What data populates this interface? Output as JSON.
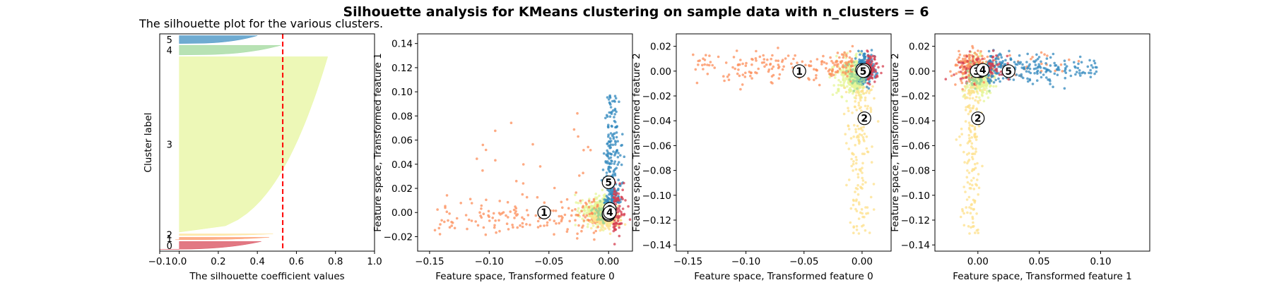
{
  "suptitle": "Silhouette analysis for KMeans clustering on sample data with n_clusters = 6",
  "colors": {
    "0": "#d53e4f",
    "1": "#fc8d59",
    "2": "#fee08b",
    "3": "#e6f598",
    "4": "#99d594",
    "5": "#3288bd",
    "avg_line": "#ff0000"
  },
  "chart_data": [
    {
      "type": "silhouette",
      "title": "The silhouette plot for the various clusters.",
      "xlabel": "The silhouette coefficient values",
      "ylabel": "Cluster label",
      "xlim": [
        -0.1,
        1.0
      ],
      "xticks": [
        "−0.1",
        "0.0",
        "0.2",
        "0.4",
        "0.6",
        "0.8",
        "1.0"
      ],
      "xtick_values": [
        -0.1,
        0.0,
        0.2,
        0.4,
        0.6,
        0.8,
        1.0
      ],
      "average_silhouette": 0.53,
      "clusters": [
        {
          "label": "0",
          "size": 46,
          "max": 0.42,
          "min": -0.1
        },
        {
          "label": "1",
          "size": 14,
          "max": 0.46,
          "min": -0.02
        },
        {
          "label": "2",
          "size": 10,
          "max": 0.48,
          "min": 0.0
        },
        {
          "label": "3",
          "size": 1014,
          "max": 0.76,
          "min": 0.0
        },
        {
          "label": "4",
          "size": 56,
          "max": 0.52,
          "min": 0.0
        },
        {
          "label": "5",
          "size": 46,
          "max": 0.4,
          "min": 0.0
        }
      ]
    },
    {
      "type": "scatter",
      "xlabel": "Feature space, Transformed feature 0",
      "ylabel": "Feature space, Transformed feature 1",
      "xlim": [
        -0.16,
        0.02
      ],
      "ylim": [
        -0.032,
        0.148
      ],
      "xticks": [
        "−0.15",
        "−0.10",
        "−0.05",
        "0.00"
      ],
      "xtick_values": [
        -0.15,
        -0.1,
        -0.05,
        0.0
      ],
      "yticks": [
        "−0.02",
        "0.00",
        "0.02",
        "0.04",
        "0.06",
        "0.08",
        "0.10",
        "0.12",
        "0.14"
      ],
      "ytick_values": [
        -0.02,
        0.0,
        0.02,
        0.04,
        0.06,
        0.08,
        0.1,
        0.12,
        0.14
      ],
      "centers": [
        {
          "label": "0",
          "x": 0.001,
          "y": 0.003
        },
        {
          "label": "1",
          "x": -0.054,
          "y": 0.0
        },
        {
          "label": "2",
          "x": 0.0,
          "y": -0.002
        },
        {
          "label": "3",
          "x": 0.0,
          "y": -0.001
        },
        {
          "label": "4",
          "x": 0.001,
          "y": 0.0
        },
        {
          "label": "5",
          "x": 0.0,
          "y": 0.025
        }
      ]
    },
    {
      "type": "scatter",
      "xlabel": "Feature space, Transformed feature 0",
      "ylabel": "Feature space, Transformed feature 2",
      "xlim": [
        -0.16,
        0.025
      ],
      "ylim": [
        -0.145,
        0.03
      ],
      "xticks": [
        "−0.15",
        "−0.10",
        "−0.05",
        "0.00"
      ],
      "xtick_values": [
        -0.15,
        -0.1,
        -0.05,
        0.0
      ],
      "yticks": [
        "0.02",
        "0.00",
        "−0.02",
        "−0.04",
        "−0.06",
        "−0.08",
        "−0.10",
        "−0.12",
        "−0.14"
      ],
      "ytick_values": [
        0.02,
        0.0,
        -0.02,
        -0.04,
        -0.06,
        -0.08,
        -0.1,
        -0.12,
        -0.14
      ],
      "centers": [
        {
          "label": "0",
          "x": 0.002,
          "y": 0.0
        },
        {
          "label": "1",
          "x": -0.054,
          "y": 0.0
        },
        {
          "label": "2",
          "x": 0.002,
          "y": -0.038
        },
        {
          "label": "3",
          "x": 0.0,
          "y": 0.001
        },
        {
          "label": "4",
          "x": 0.002,
          "y": 0.001
        },
        {
          "label": "5",
          "x": 0.001,
          "y": 0.0
        }
      ]
    },
    {
      "type": "scatter",
      "xlabel": "Feature space, Transformed feature 1",
      "ylabel": "Feature space, Transformed feature 2",
      "xlim": [
        -0.035,
        0.14
      ],
      "ylim": [
        -0.145,
        0.03
      ],
      "xticks": [
        "0.00",
        "0.05",
        "0.10"
      ],
      "xtick_values": [
        0.0,
        0.05,
        0.1
      ],
      "yticks": [
        "0.02",
        "0.00",
        "−0.02",
        "−0.04",
        "−0.06",
        "−0.08",
        "−0.10",
        "−0.12",
        "−0.14"
      ],
      "ytick_values": [
        0.02,
        0.0,
        -0.02,
        -0.04,
        -0.06,
        -0.08,
        -0.1,
        -0.12,
        -0.14
      ],
      "centers": [
        {
          "label": "0",
          "x": 0.002,
          "y": 0.0
        },
        {
          "label": "1",
          "x": 0.0,
          "y": 0.0
        },
        {
          "label": "2",
          "x": 0.0,
          "y": -0.038
        },
        {
          "label": "3",
          "x": -0.001,
          "y": 0.0
        },
        {
          "label": "4",
          "x": 0.004,
          "y": 0.001
        },
        {
          "label": "5",
          "x": 0.025,
          "y": 0.0
        }
      ]
    }
  ]
}
